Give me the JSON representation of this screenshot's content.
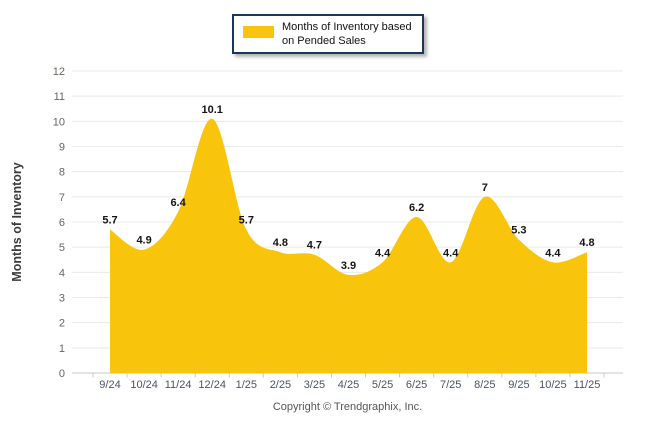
{
  "legend": {
    "line1": "Months of Inventory based",
    "line2": "on Pended Sales"
  },
  "footer": {
    "copyright": "Copyright © Trendgraphix, Inc."
  },
  "chart_data": {
    "type": "area",
    "title": "",
    "categories": [
      "9/24",
      "10/24",
      "11/24",
      "12/24",
      "1/25",
      "2/25",
      "3/25",
      "4/25",
      "5/25",
      "6/25",
      "7/25",
      "8/25",
      "9/25",
      "10/25",
      "11/25"
    ],
    "series": [
      {
        "name": "Months of Inventory based on Pended Sales",
        "values": [
          5.7,
          4.9,
          6.4,
          10.1,
          5.7,
          4.8,
          4.7,
          3.9,
          4.4,
          6.2,
          4.4,
          7,
          5.3,
          4.4,
          4.8
        ]
      }
    ],
    "xlabel": "",
    "ylabel": "Months of Inventory",
    "ylim": [
      0,
      12
    ],
    "ytick_step": 1,
    "grid": true,
    "legend_position": "top-center",
    "smooth": true,
    "data_labels": true,
    "colors": {
      "area_fill": "#F8C50C",
      "grid_line": "#e9e9e9",
      "axis_line": "#c8c8c8",
      "x_tick_label": "#4a5264",
      "y_tick_label": "#66655e",
      "data_label": "#141414",
      "axis_title": "#3a3a3a"
    }
  }
}
